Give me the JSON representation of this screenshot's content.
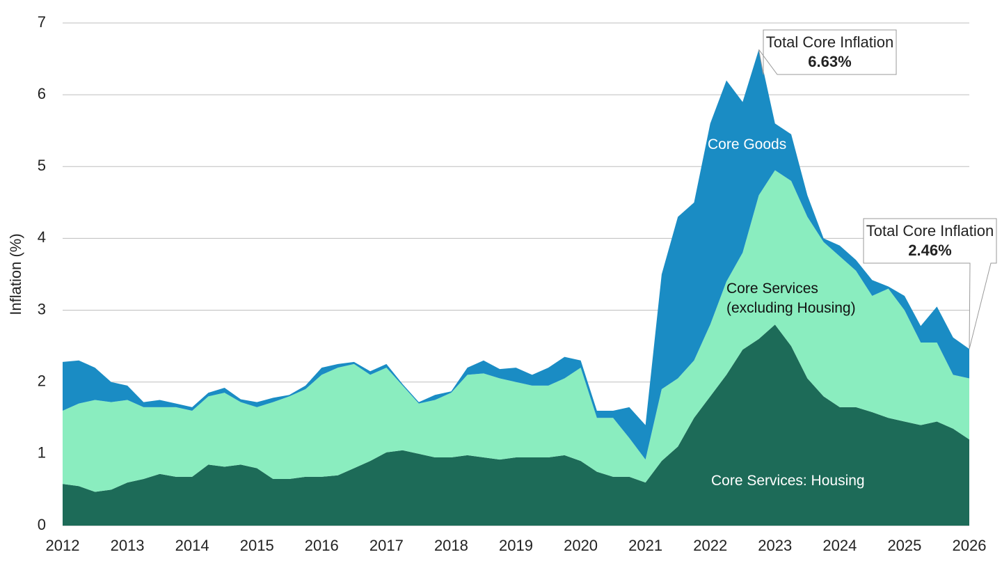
{
  "chart_data": {
    "type": "stacked_area",
    "y_label": "Inflation (%)",
    "x": [
      2012,
      2012.25,
      2012.5,
      2012.75,
      2013,
      2013.25,
      2013.5,
      2013.75,
      2014,
      2014.25,
      2014.5,
      2014.75,
      2015,
      2015.25,
      2015.5,
      2015.75,
      2016,
      2016.25,
      2016.5,
      2016.75,
      2017,
      2017.25,
      2017.5,
      2017.75,
      2018,
      2018.25,
      2018.5,
      2018.75,
      2019,
      2019.25,
      2019.5,
      2019.75,
      2020,
      2020.25,
      2020.5,
      2020.75,
      2021,
      2021.25,
      2021.5,
      2021.75,
      2022,
      2022.25,
      2022.5,
      2022.75,
      2023,
      2023.25,
      2023.5,
      2023.75,
      2024,
      2024.25,
      2024.5,
      2024.75,
      2025,
      2025.25,
      2025.5,
      2025.75,
      2026
    ],
    "series": [
      {
        "name": "Core Services: Housing",
        "color": "#1d6b58",
        "label_color": "#ffffff",
        "values": [
          0.58,
          0.55,
          0.47,
          0.5,
          0.6,
          0.65,
          0.72,
          0.68,
          0.68,
          0.85,
          0.82,
          0.85,
          0.8,
          0.65,
          0.65,
          0.68,
          0.68,
          0.7,
          0.8,
          0.9,
          1.02,
          1.05,
          1.0,
          0.95,
          0.95,
          0.98,
          0.95,
          0.92,
          0.95,
          0.95,
          0.95,
          0.98,
          0.9,
          0.75,
          0.68,
          0.68,
          0.6,
          0.9,
          1.1,
          1.5,
          1.8,
          2.1,
          2.45,
          2.6,
          2.8,
          2.5,
          2.05,
          1.8,
          1.65,
          1.65,
          1.58,
          1.5,
          1.45,
          1.4,
          1.45,
          1.35,
          1.2
        ]
      },
      {
        "name": "Core Services (excluding Housing)",
        "color": "#8aedbf",
        "label_color": "#111111",
        "values": [
          1.02,
          1.15,
          1.28,
          1.22,
          1.15,
          1.0,
          0.93,
          0.97,
          0.92,
          0.95,
          1.03,
          0.87,
          0.85,
          1.07,
          1.15,
          1.22,
          1.42,
          1.5,
          1.45,
          1.2,
          1.18,
          0.9,
          0.7,
          0.8,
          0.9,
          1.12,
          1.17,
          1.13,
          1.05,
          1.0,
          1.0,
          1.07,
          1.3,
          0.75,
          0.82,
          0.54,
          0.32,
          1.0,
          0.95,
          0.8,
          1.0,
          1.3,
          1.35,
          2.0,
          2.15,
          2.3,
          2.25,
          2.15,
          2.1,
          1.9,
          1.62,
          1.8,
          1.55,
          1.15,
          1.1,
          0.75,
          0.85
        ]
      },
      {
        "name": "Core Goods",
        "color": "#1a8cc4",
        "label_color": "#ffffff",
        "values": [
          0.68,
          0.6,
          0.45,
          0.28,
          0.2,
          0.07,
          0.1,
          0.05,
          0.05,
          0.05,
          0.07,
          0.04,
          0.07,
          0.06,
          0.02,
          0.05,
          0.1,
          0.05,
          0.03,
          0.05,
          0.05,
          0.02,
          0.02,
          0.07,
          0.02,
          0.1,
          0.18,
          0.13,
          0.2,
          0.15,
          0.25,
          0.3,
          0.1,
          0.1,
          0.1,
          0.43,
          0.48,
          1.6,
          2.25,
          2.2,
          2.8,
          2.8,
          2.1,
          2.03,
          0.65,
          0.65,
          0.3,
          0.05,
          0.15,
          0.15,
          0.22,
          0.03,
          0.2,
          0.23,
          0.5,
          0.52,
          0.41
        ]
      }
    ],
    "annotations": [
      {
        "text": "Total Core Inflation",
        "value": 6.63,
        "value_label": "6.63%",
        "x": 2022.75
      },
      {
        "text": "Total Core Inflation",
        "value": 2.46,
        "value_label": "2.46%",
        "x": 2026
      }
    ],
    "xlim": [
      2012,
      2026
    ],
    "xticks": [
      2012,
      2013,
      2014,
      2015,
      2016,
      2017,
      2018,
      2019,
      2020,
      2021,
      2022,
      2023,
      2024,
      2025,
      2026
    ],
    "ylim": [
      0,
      7
    ],
    "yticks": [
      0,
      1,
      2,
      3,
      4,
      5,
      6,
      7
    ],
    "grid": true
  }
}
